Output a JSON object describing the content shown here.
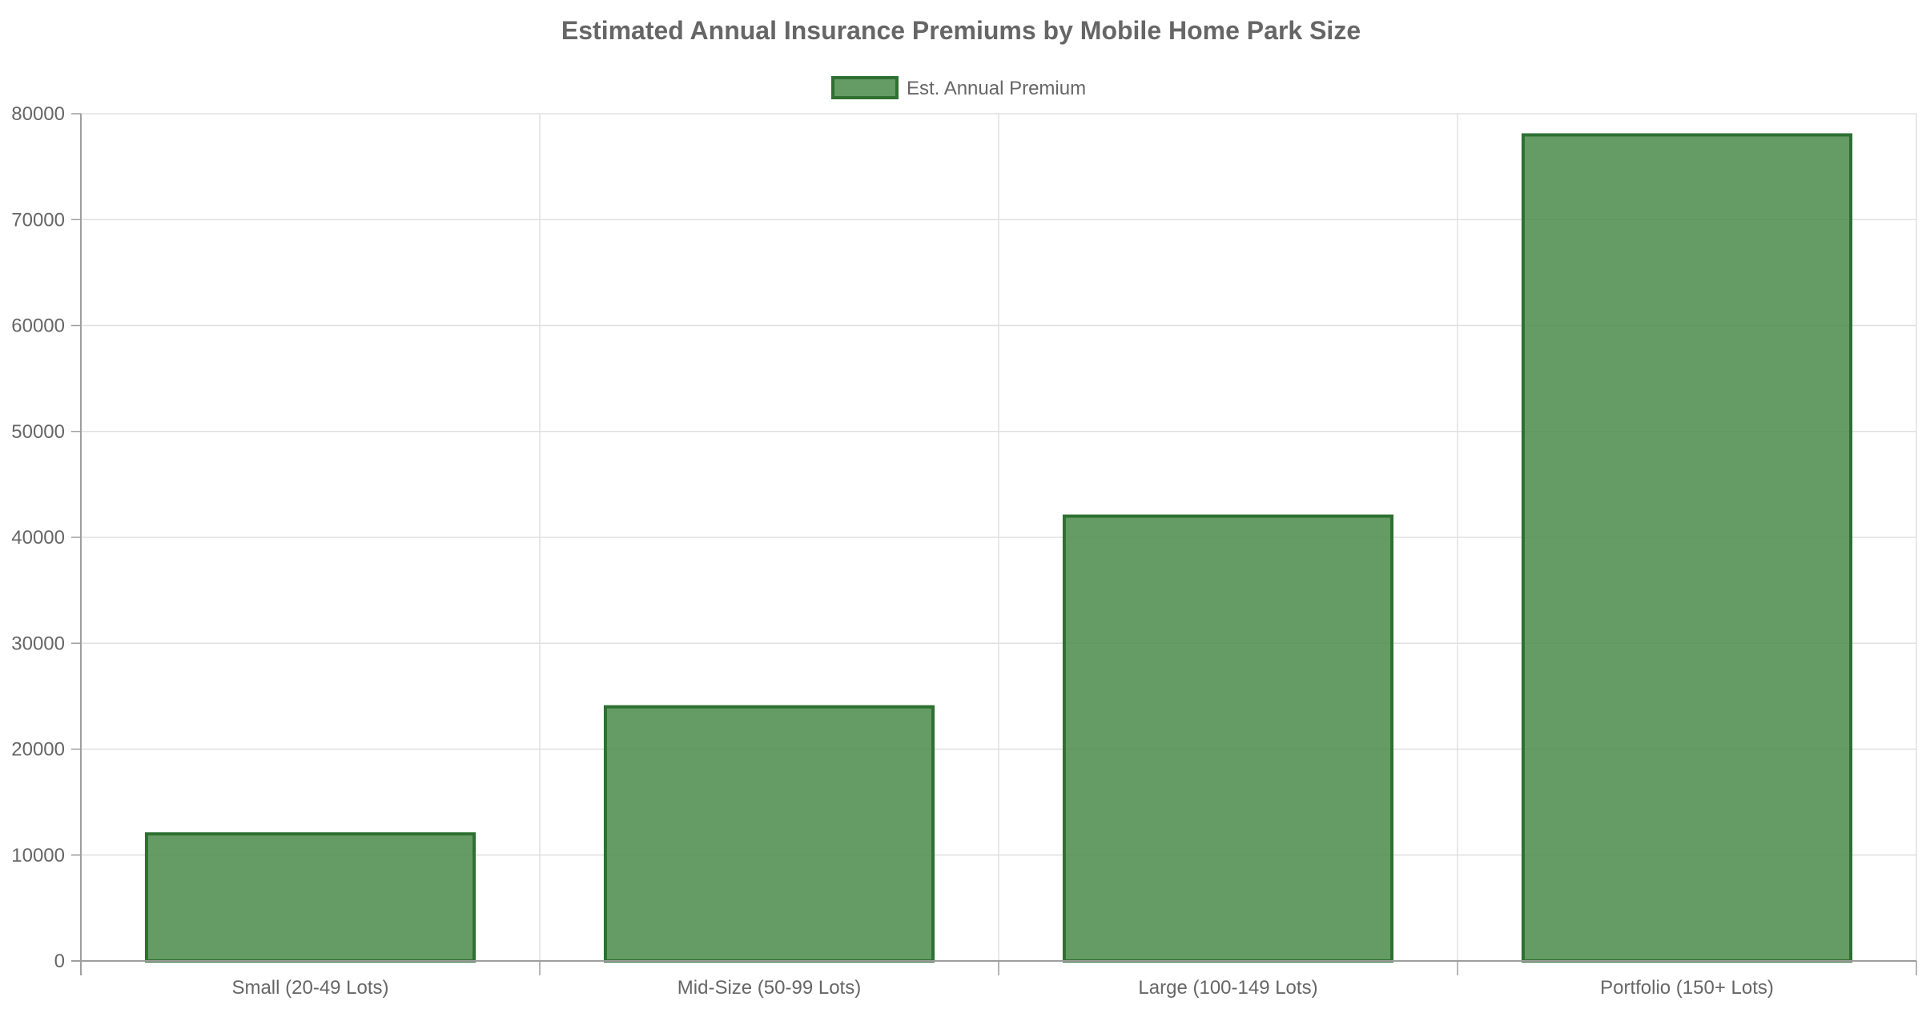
{
  "chart_data": {
    "type": "bar",
    "title": "Estimated Annual Insurance Premiums by Mobile Home Park Size",
    "categories": [
      "Small (20-49 Lots)",
      "Mid-Size (50-99 Lots)",
      "Large (100-149 Lots)",
      "Portfolio (150+ Lots)"
    ],
    "series": [
      {
        "name": "Est. Annual Premium",
        "values": [
          12000,
          24000,
          42000,
          78000
        ]
      }
    ],
    "ylim": [
      0,
      80000
    ],
    "yticks": [
      0,
      10000,
      20000,
      30000,
      40000,
      50000,
      60000,
      70000,
      80000
    ],
    "xlabel": "",
    "ylabel": "",
    "grid": true,
    "legend_position": "top",
    "colors": {
      "bar_fill": "#4a8a4a",
      "bar_stroke": "#2e7031",
      "grid": "#e0e0e0",
      "axis": "#9e9e9e",
      "text": "#666666"
    }
  }
}
